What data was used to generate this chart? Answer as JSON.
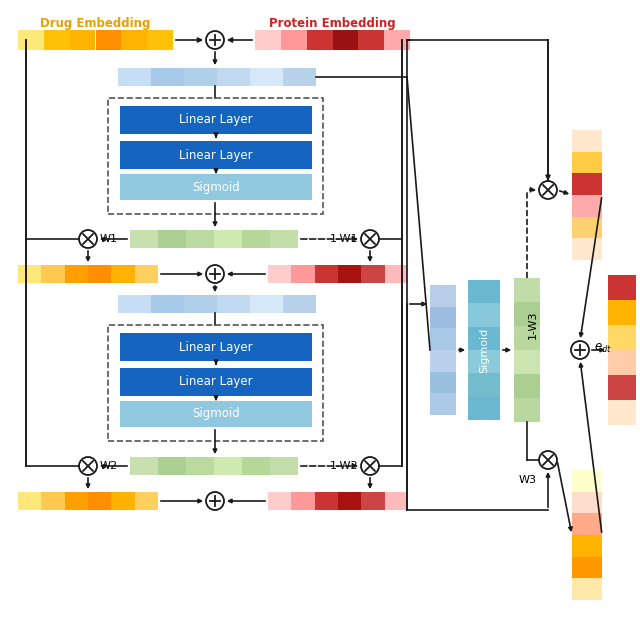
{
  "bg_color": "#ffffff",
  "drug_label": "Drug Embedding",
  "protein_label": "Protein Embedding",
  "linear_color": "#1565C0",
  "sigmoid_color_dark": "#5BACD0",
  "sigmoid_color_light": "#90C8E0",
  "arrow_color": "#1a1a1a",
  "w1_label": "W1",
  "w1c_label": "1-W1",
  "w2_label": "W2",
  "w2c_label": "1-W2",
  "w3_label": "W3",
  "w3c_label": "1-W3",
  "label_color_drug": "#E8A000",
  "label_color_protein": "#CC2222",
  "drug_bar_colors": [
    "#FFE87A",
    "#FFC107",
    "#FFB300",
    "#FF8F00",
    "#FFB300",
    "#FFC107"
  ],
  "prot_bar_colors": [
    "#FFCCCC",
    "#FF9999",
    "#CC3333",
    "#991111",
    "#CC3333",
    "#FFAAAA"
  ],
  "blue_bar_colors": [
    "#C5DDF5",
    "#A8CAEA",
    "#B0CFE8",
    "#C0D8F0",
    "#D5E8F8",
    "#B8D2EC"
  ],
  "green_bar_colors": [
    "#C8DFAF",
    "#AACF90",
    "#BBDAA0",
    "#CEEAAF",
    "#B5D898",
    "#C2DDA8"
  ],
  "drug_out_colors_1": [
    "#FFE87A",
    "#FFC950",
    "#FFA000",
    "#FF8F00",
    "#FFB300",
    "#FFD060"
  ],
  "prot_out_colors_1": [
    "#FFCCCC",
    "#FF9999",
    "#CC3333",
    "#AA1111",
    "#CC4444",
    "#FFBBBB"
  ],
  "drug_out_colors_2": [
    "#FFE87A",
    "#FFC950",
    "#FFA000",
    "#FF8F00",
    "#FFB300",
    "#FFD060"
  ],
  "prot_out_colors_2": [
    "#FFCCCC",
    "#FF9999",
    "#CC3333",
    "#AA1111",
    "#CC4444",
    "#FFBBBB"
  ],
  "right_blue_colors": [
    "#B8CDE8",
    "#9CBDE0",
    "#A8C8E8",
    "#B8D0EC",
    "#9AC0E0",
    "#ACCAE8"
  ],
  "right_sigmoid_colors": [
    "#6AB8D0",
    "#88C8DC",
    "#6AB8D0",
    "#8ACADA",
    "#72BCCE",
    "#6AB8D0"
  ],
  "right_green_colors": [
    "#C0DCA8",
    "#AACF90",
    "#B8D8A0",
    "#CCE4B0",
    "#AACF90",
    "#B8D8A0"
  ],
  "rtop_bar_colors": [
    "#FFE8CC",
    "#FFCC44",
    "#CC3333",
    "#FFAAAA",
    "#FFD070",
    "#FFE8CC"
  ],
  "rbot_bar_colors": [
    "#FFFFCC",
    "#FFDDCC",
    "#FFAA88",
    "#FFB300",
    "#FF9800",
    "#FFE8AA"
  ],
  "edt_bar_colors": [
    "#CC3333",
    "#FFB300",
    "#FFD966",
    "#FFCCAA",
    "#CC4444",
    "#FFE8CC"
  ]
}
